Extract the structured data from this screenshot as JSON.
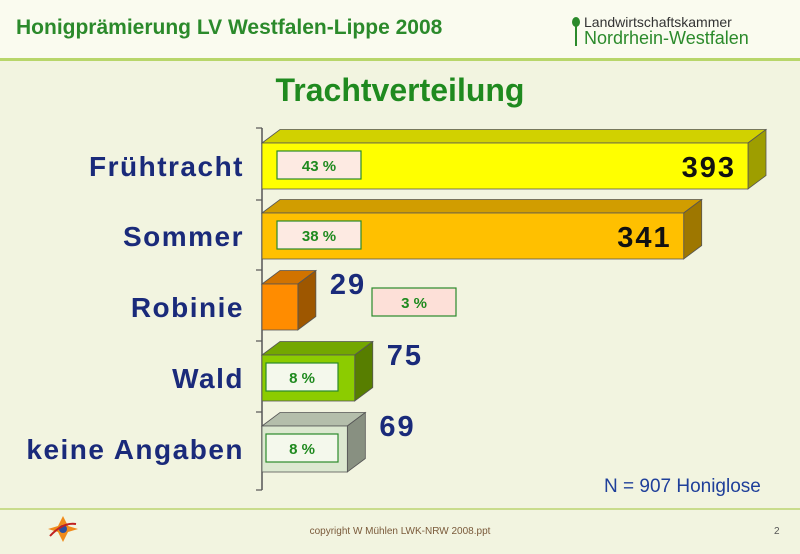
{
  "header": {
    "title": "Honigprämierung LV Westfalen-Lippe 2008",
    "logo_line1": "Landwirtschaftskammer",
    "logo_line2": "Nordrhein-Westfalen"
  },
  "chart_data": {
    "type": "bar",
    "orientation": "horizontal",
    "title": "Trachtverteilung",
    "categories": [
      "Frühtracht",
      "Sommer",
      "Robinie",
      "Wald",
      "keine Angaben"
    ],
    "values": [
      393,
      341,
      29,
      75,
      69
    ],
    "value_labels": [
      "393",
      "341",
      "29",
      "75",
      "69"
    ],
    "percent_labels": [
      "43 %",
      "38 %",
      "3 %",
      "8 %",
      "8 %"
    ],
    "colors": [
      "#ffff00",
      "#ffc000",
      "#ff8c00",
      "#8ccc00",
      "#dce8d0"
    ],
    "xlim": [
      0,
      393
    ],
    "grid": false,
    "legend": "none",
    "note": "N = 907 Honiglose"
  },
  "footer": {
    "copyright": "copyright W Mühlen LWK-NRW 2008.ppt",
    "page_number": "2"
  }
}
